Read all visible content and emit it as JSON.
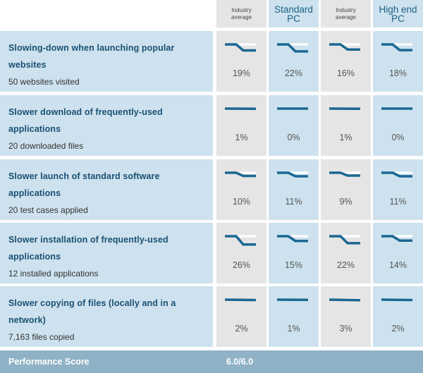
{
  "colors": {
    "line": "#1b6792",
    "highlight": "#ffffff",
    "label_bg": "#cde2ee",
    "avg_bg": "#e5e5e5",
    "score_bg": "#8fb2c6"
  },
  "columns": [
    {
      "label": "Industry\naverage",
      "kind": "avg"
    },
    {
      "label": "Standard\nPC",
      "kind": "pc"
    },
    {
      "label": "Industry\naverage",
      "kind": "avg"
    },
    {
      "label": "High end\nPC",
      "kind": "pc"
    }
  ],
  "rows": [
    {
      "title": "Slowing-down when launching popular websites",
      "subtitle": "50 websites visited",
      "cells": [
        {
          "pct": "19%",
          "drop": 19
        },
        {
          "pct": "22%",
          "drop": 22
        },
        {
          "pct": "16%",
          "drop": 16
        },
        {
          "pct": "18%",
          "drop": 18
        }
      ]
    },
    {
      "title": "Slower download of frequently-used applications",
      "subtitle": "20 downloaded files",
      "cells": [
        {
          "pct": "1%",
          "drop": 1
        },
        {
          "pct": "0%",
          "drop": 0
        },
        {
          "pct": "1%",
          "drop": 1
        },
        {
          "pct": "0%",
          "drop": 0
        }
      ]
    },
    {
      "title": "Slower launch of standard software applications",
      "subtitle": "20 test cases applied",
      "cells": [
        {
          "pct": "10%",
          "drop": 10
        },
        {
          "pct": "11%",
          "drop": 11
        },
        {
          "pct": "9%",
          "drop": 9
        },
        {
          "pct": "11%",
          "drop": 11
        }
      ]
    },
    {
      "title": "Slower installation of frequently-used applications",
      "subtitle": "12 installed applications",
      "cells": [
        {
          "pct": "26%",
          "drop": 26
        },
        {
          "pct": "15%",
          "drop": 15
        },
        {
          "pct": "22%",
          "drop": 22
        },
        {
          "pct": "14%",
          "drop": 14
        }
      ]
    },
    {
      "title": "Slower copying of files (locally and in a network)",
      "subtitle": "7,163 files copied",
      "cells": [
        {
          "pct": "2%",
          "drop": 2
        },
        {
          "pct": "1%",
          "drop": 1
        },
        {
          "pct": "3%",
          "drop": 3
        },
        {
          "pct": "2%",
          "drop": 2
        }
      ]
    }
  ],
  "score": {
    "label": "Performance Score",
    "value": "6.0/6.0"
  }
}
